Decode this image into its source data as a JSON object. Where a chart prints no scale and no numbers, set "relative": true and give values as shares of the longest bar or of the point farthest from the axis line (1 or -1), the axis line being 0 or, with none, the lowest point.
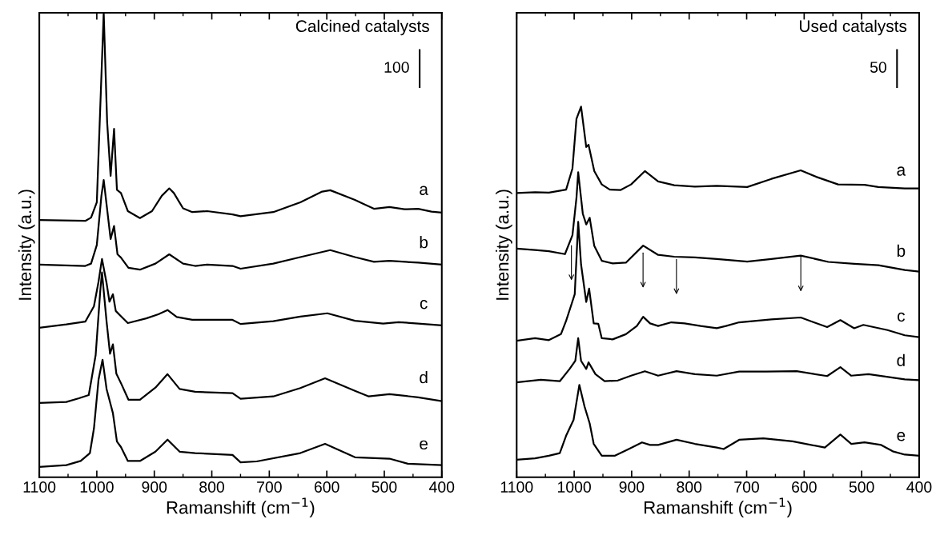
{
  "chart_data": [
    {
      "type": "line",
      "title": "Calcined catalysts",
      "xlabel": "Ramanshift (cm$^{−1}$)",
      "ylabel": "Intensity (a.u.)",
      "relative": true,
      "xlim": [
        1100,
        400
      ],
      "xticks": [
        1100,
        1000,
        900,
        800,
        700,
        600,
        500,
        400
      ],
      "tick_labels": "x",
      "annotations": [
        "100"
      ],
      "line_style": "solid",
      "series": [
        {
          "name": "a",
          "color": "#000000",
          "x": [
            1100,
            1020,
            1010,
            1000,
            993,
            988,
            982,
            976,
            970,
            965,
            958,
            946,
            925,
            904,
            887,
            874,
            866,
            850,
            834,
            808,
            764,
            750,
            693,
            646,
            608,
            594,
            551,
            518,
            491,
            465,
            441,
            418,
            400
          ],
          "values": [
            0.554,
            0.552,
            0.559,
            0.592,
            0.83,
            1.0,
            0.764,
            0.649,
            0.75,
            0.619,
            0.612,
            0.573,
            0.558,
            0.573,
            0.606,
            0.622,
            0.612,
            0.579,
            0.571,
            0.573,
            0.566,
            0.562,
            0.571,
            0.592,
            0.615,
            0.618,
            0.597,
            0.578,
            0.582,
            0.577,
            0.578,
            0.572,
            0.57
          ]
        },
        {
          "name": "b",
          "color": "#000000",
          "x": [
            1100,
            1020,
            1010,
            1000,
            992,
            988,
            981,
            976,
            970,
            964,
            958,
            945,
            925,
            898,
            874,
            850,
            829,
            808,
            764,
            750,
            693,
            646,
            594,
            551,
            518,
            491,
            441,
            400
          ],
          "values": [
            0.458,
            0.455,
            0.46,
            0.5,
            0.606,
            0.64,
            0.566,
            0.513,
            0.541,
            0.48,
            0.473,
            0.451,
            0.447,
            0.46,
            0.48,
            0.46,
            0.455,
            0.458,
            0.455,
            0.449,
            0.46,
            0.474,
            0.489,
            0.474,
            0.464,
            0.466,
            0.462,
            0.458
          ]
        },
        {
          "name": "c",
          "color": "#000000",
          "x": [
            1100,
            1053,
            1020,
            1005,
            997,
            991,
            983,
            978,
            972,
            967,
            959,
            946,
            914,
            893,
            877,
            861,
            834,
            764,
            750,
            693,
            646,
            599,
            551,
            502,
            475,
            441,
            400
          ],
          "values": [
            0.322,
            0.329,
            0.335,
            0.368,
            0.421,
            0.47,
            0.418,
            0.378,
            0.394,
            0.358,
            0.348,
            0.332,
            0.342,
            0.351,
            0.36,
            0.345,
            0.339,
            0.339,
            0.33,
            0.336,
            0.346,
            0.353,
            0.337,
            0.331,
            0.334,
            0.331,
            0.327
          ]
        },
        {
          "name": "d",
          "color": "#000000",
          "x": [
            1100,
            1053,
            1031,
            1014,
            1002,
            994,
            991,
            983,
            977,
            972,
            966,
            957,
            945,
            925,
            898,
            877,
            856,
            829,
            764,
            750,
            693,
            646,
            603,
            551,
            527,
            491,
            441,
            400
          ],
          "values": [
            0.16,
            0.162,
            0.17,
            0.177,
            0.263,
            0.401,
            0.441,
            0.335,
            0.266,
            0.286,
            0.223,
            0.2,
            0.167,
            0.167,
            0.193,
            0.222,
            0.19,
            0.184,
            0.181,
            0.169,
            0.174,
            0.192,
            0.213,
            0.186,
            0.174,
            0.179,
            0.172,
            0.164
          ]
        },
        {
          "name": "e",
          "color": "#000000",
          "x": [
            1100,
            1053,
            1028,
            1012,
            1005,
            997,
            990,
            983,
            972,
            965,
            958,
            946,
            925,
            898,
            877,
            856,
            829,
            764,
            750,
            722,
            646,
            603,
            551,
            491,
            459,
            400
          ],
          "values": [
            0.022,
            0.026,
            0.035,
            0.052,
            0.105,
            0.21,
            0.253,
            0.19,
            0.138,
            0.077,
            0.065,
            0.035,
            0.035,
            0.055,
            0.081,
            0.055,
            0.052,
            0.048,
            0.032,
            0.034,
            0.052,
            0.072,
            0.043,
            0.04,
            0.029,
            0.026
          ]
        }
      ]
    },
    {
      "type": "line",
      "title": "Used catalysts",
      "xlabel": "Ramanshift (cm$^{−1}$)",
      "ylabel": "Intensity (a.u.)",
      "relative": true,
      "xlim": [
        1100,
        400
      ],
      "xticks": [
        1100,
        1000,
        900,
        800,
        700,
        600,
        500,
        400
      ],
      "tick_labels": "x",
      "line_style": "solid",
      "annotations": [
        "50"
      ],
      "series": [
        {
          "name": "a",
          "color": "#000000",
          "x": [
            1100,
            1068,
            1044,
            1014,
            1003,
            996,
            988,
            979,
            975,
            965,
            952,
            938,
            919,
            901,
            877,
            854,
            826,
            790,
            752,
            699,
            657,
            606,
            578,
            541,
            495,
            471,
            425,
            400
          ],
          "values": [
            0.767,
            0.769,
            0.768,
            0.776,
            0.833,
            0.967,
            1.0,
            0.891,
            0.897,
            0.826,
            0.79,
            0.776,
            0.775,
            0.79,
            0.826,
            0.798,
            0.788,
            0.784,
            0.786,
            0.783,
            0.805,
            0.828,
            0.81,
            0.79,
            0.789,
            0.783,
            0.779,
            0.779
          ]
        },
        {
          "name": "b",
          "color": "#000000",
          "x": [
            1100,
            1068,
            1044,
            1016,
            1003,
            996,
            993,
            985,
            979,
            973,
            965,
            952,
            933,
            910,
            880,
            854,
            826,
            790,
            752,
            699,
            657,
            606,
            558,
            513,
            471,
            425,
            400
          ],
          "values": [
            0.617,
            0.613,
            0.61,
            0.602,
            0.653,
            0.754,
            0.823,
            0.711,
            0.682,
            0.7,
            0.624,
            0.584,
            0.577,
            0.579,
            0.625,
            0.6,
            0.595,
            0.593,
            0.589,
            0.582,
            0.589,
            0.598,
            0.581,
            0.576,
            0.572,
            0.559,
            0.555
          ]
        },
        {
          "name": "c",
          "color": "#000000",
          "x": [
            1100,
            1068,
            1044,
            1023,
            1014,
            1005,
            999,
            993,
            988,
            979,
            974,
            966,
            958,
            952,
            933,
            910,
            891,
            880,
            868,
            854,
            831,
            808,
            780,
            752,
            736,
            713,
            657,
            606,
            560,
            537,
            513,
            497,
            455,
            425,
            400
          ],
          "values": [
            0.368,
            0.375,
            0.37,
            0.386,
            0.422,
            0.465,
            0.494,
            0.689,
            0.574,
            0.473,
            0.509,
            0.415,
            0.414,
            0.375,
            0.372,
            0.386,
            0.408,
            0.433,
            0.415,
            0.408,
            0.418,
            0.415,
            0.408,
            0.402,
            0.408,
            0.418,
            0.426,
            0.431,
            0.405,
            0.424,
            0.402,
            0.411,
            0.397,
            0.383,
            0.378
          ]
        },
        {
          "name": "d",
          "color": "#000000",
          "x": [
            1100,
            1058,
            1025,
            1008,
            998,
            993,
            988,
            979,
            975,
            963,
            947,
            924,
            901,
            877,
            854,
            822,
            790,
            752,
            713,
            666,
            613,
            560,
            537,
            518,
            488,
            425,
            400
          ],
          "values": [
            0.256,
            0.263,
            0.259,
            0.292,
            0.314,
            0.375,
            0.314,
            0.292,
            0.31,
            0.278,
            0.259,
            0.261,
            0.274,
            0.286,
            0.274,
            0.286,
            0.278,
            0.274,
            0.285,
            0.285,
            0.286,
            0.273,
            0.297,
            0.274,
            0.278,
            0.264,
            0.262
          ]
        },
        {
          "name": "e",
          "color": "#000000",
          "x": [
            1100,
            1068,
            1044,
            1025,
            1014,
            1001,
            991,
            982,
            973,
            966,
            952,
            929,
            905,
            882,
            868,
            854,
            822,
            790,
            752,
            740,
            713,
            671,
            620,
            564,
            537,
            518,
            495,
            466,
            446,
            425,
            400
          ],
          "values": [
            0.047,
            0.051,
            0.058,
            0.065,
            0.112,
            0.155,
            0.249,
            0.191,
            0.145,
            0.09,
            0.058,
            0.058,
            0.076,
            0.094,
            0.087,
            0.087,
            0.101,
            0.09,
            0.08,
            0.076,
            0.101,
            0.105,
            0.097,
            0.08,
            0.115,
            0.09,
            0.094,
            0.087,
            0.07,
            0.061,
            0.058
          ]
        }
      ]
    }
  ]
}
